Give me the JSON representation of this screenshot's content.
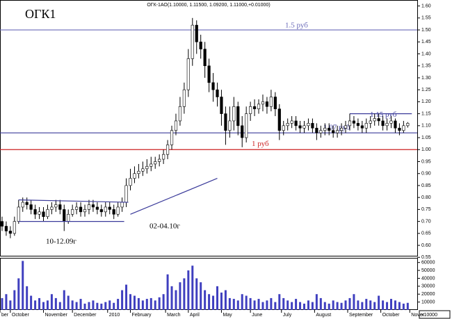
{
  "chart_data": {
    "type": "candlestick",
    "title": "ОГК1",
    "header": "ОГК-1АО(1.10000, 1.11500, 1.09200, 1.11000,+0.01000)",
    "annotations": [
      "10-12.09г",
      "02-04.10г"
    ],
    "xlim": [
      -0.5,
      100.3
    ],
    "xticks": [
      {
        "value": -0.5,
        "label": "ber"
      },
      {
        "value": 2,
        "label": "October"
      },
      {
        "value": 10,
        "label": "November"
      },
      {
        "value": 17,
        "label": "December"
      },
      {
        "value": 25.5,
        "label": "2010"
      },
      {
        "value": 31,
        "label": "February"
      },
      {
        "value": 39.5,
        "label": "March"
      },
      {
        "value": 45,
        "label": "April"
      },
      {
        "value": 53,
        "label": "May"
      },
      {
        "value": 60,
        "label": "June"
      },
      {
        "value": 67.5,
        "label": "July"
      },
      {
        "value": 75.5,
        "label": "August"
      },
      {
        "value": 83.5,
        "label": "September"
      },
      {
        "value": 91.5,
        "label": "October"
      },
      {
        "value": 98.5,
        "label": "Nover"
      }
    ],
    "ylim": [
      0.545,
      1.625
    ],
    "yticks": [
      {
        "value": 0.55,
        "label": "0.55"
      },
      {
        "value": 0.6,
        "label": "0.60"
      },
      {
        "value": 0.65,
        "label": "0.65"
      },
      {
        "value": 0.7,
        "label": "0.70"
      },
      {
        "value": 0.75,
        "label": "0.75"
      },
      {
        "value": 0.8,
        "label": "0.80"
      },
      {
        "value": 0.85,
        "label": "0.85"
      },
      {
        "value": 0.9,
        "label": "0.90"
      },
      {
        "value": 0.95,
        "label": "0.95"
      },
      {
        "value": 1.0,
        "label": "1.00"
      },
      {
        "value": 1.05,
        "label": "1.05"
      },
      {
        "value": 1.1,
        "label": "1.10"
      },
      {
        "value": 1.15,
        "label": "1.15"
      },
      {
        "value": 1.2,
        "label": "1.20"
      },
      {
        "value": 1.25,
        "label": "1.25"
      },
      {
        "value": 1.3,
        "label": "1.30"
      },
      {
        "value": 1.35,
        "label": "1.35"
      },
      {
        "value": 1.4,
        "label": "1.40"
      },
      {
        "value": 1.45,
        "label": "1.45"
      },
      {
        "value": 1.5,
        "label": "1.50"
      },
      {
        "value": 1.55,
        "label": "1.55"
      },
      {
        "value": 1.6,
        "label": "1.60"
      }
    ],
    "up_color": "#ffffff",
    "down_color": "#000000",
    "candles": [
      [
        0.7,
        0.72,
        0.66,
        0.68
      ],
      [
        0.68,
        0.7,
        0.64,
        0.66
      ],
      [
        0.66,
        0.68,
        0.63,
        0.65
      ],
      [
        0.65,
        0.72,
        0.64,
        0.7
      ],
      [
        0.7,
        0.79,
        0.69,
        0.76
      ],
      [
        0.76,
        0.8,
        0.74,
        0.78
      ],
      [
        0.78,
        0.8,
        0.75,
        0.77
      ],
      [
        0.77,
        0.79,
        0.73,
        0.75
      ],
      [
        0.75,
        0.77,
        0.71,
        0.73
      ],
      [
        0.73,
        0.76,
        0.71,
        0.74
      ],
      [
        0.74,
        0.76,
        0.7,
        0.72
      ],
      [
        0.72,
        0.77,
        0.71,
        0.75
      ],
      [
        0.75,
        0.78,
        0.73,
        0.76
      ],
      [
        0.76,
        0.79,
        0.74,
        0.77
      ],
      [
        0.77,
        0.79,
        0.73,
        0.75
      ],
      [
        0.75,
        0.77,
        0.66,
        0.7
      ],
      [
        0.7,
        0.75,
        0.69,
        0.73
      ],
      [
        0.73,
        0.77,
        0.72,
        0.75
      ],
      [
        0.75,
        0.78,
        0.73,
        0.76
      ],
      [
        0.76,
        0.78,
        0.72,
        0.74
      ],
      [
        0.74,
        0.77,
        0.72,
        0.75
      ],
      [
        0.75,
        0.79,
        0.73,
        0.77
      ],
      [
        0.77,
        0.79,
        0.74,
        0.76
      ],
      [
        0.76,
        0.78,
        0.73,
        0.75
      ],
      [
        0.75,
        0.77,
        0.72,
        0.74
      ],
      [
        0.74,
        0.78,
        0.72,
        0.76
      ],
      [
        0.76,
        0.78,
        0.73,
        0.75
      ],
      [
        0.75,
        0.77,
        0.71,
        0.73
      ],
      [
        0.73,
        0.78,
        0.72,
        0.76
      ],
      [
        0.76,
        0.8,
        0.74,
        0.78
      ],
      [
        0.78,
        0.88,
        0.76,
        0.85
      ],
      [
        0.85,
        0.92,
        0.83,
        0.88
      ],
      [
        0.88,
        0.93,
        0.86,
        0.9
      ],
      [
        0.9,
        0.94,
        0.88,
        0.91
      ],
      [
        0.91,
        0.95,
        0.89,
        0.92
      ],
      [
        0.92,
        0.96,
        0.9,
        0.93
      ],
      [
        0.93,
        0.97,
        0.91,
        0.94
      ],
      [
        0.94,
        0.97,
        0.92,
        0.95
      ],
      [
        0.95,
        0.98,
        0.93,
        0.96
      ],
      [
        0.96,
        1.0,
        0.94,
        0.98
      ],
      [
        0.98,
        1.04,
        0.96,
        1.02
      ],
      [
        1.02,
        1.1,
        1.0,
        1.08
      ],
      [
        1.08,
        1.15,
        1.06,
        1.12
      ],
      [
        1.12,
        1.22,
        1.1,
        1.18
      ],
      [
        1.18,
        1.28,
        1.15,
        1.25
      ],
      [
        1.25,
        1.42,
        1.22,
        1.38
      ],
      [
        1.38,
        1.55,
        1.35,
        1.52
      ],
      [
        1.52,
        1.54,
        1.4,
        1.45
      ],
      [
        1.45,
        1.48,
        1.38,
        1.42
      ],
      [
        1.42,
        1.45,
        1.3,
        1.35
      ],
      [
        1.35,
        1.38,
        1.24,
        1.28
      ],
      [
        1.28,
        1.32,
        1.2,
        1.25
      ],
      [
        1.25,
        1.28,
        1.18,
        1.22
      ],
      [
        1.22,
        1.25,
        1.1,
        1.15
      ],
      [
        1.15,
        1.18,
        1.02,
        1.08
      ],
      [
        1.08,
        1.18,
        1.05,
        1.12
      ],
      [
        1.12,
        1.22,
        1.08,
        1.18
      ],
      [
        1.18,
        1.2,
        1.06,
        1.1
      ],
      [
        1.1,
        1.14,
        1.01,
        1.05
      ],
      [
        1.05,
        1.18,
        1.03,
        1.15
      ],
      [
        1.15,
        1.2,
        1.12,
        1.18
      ],
      [
        1.18,
        1.21,
        1.14,
        1.17
      ],
      [
        1.17,
        1.21,
        1.15,
        1.19
      ],
      [
        1.19,
        1.23,
        1.16,
        1.2
      ],
      [
        1.2,
        1.22,
        1.15,
        1.18
      ],
      [
        1.18,
        1.25,
        1.16,
        1.22
      ],
      [
        1.22,
        1.24,
        1.14,
        1.17
      ],
      [
        1.17,
        1.19,
        1.04,
        1.08
      ],
      [
        1.08,
        1.12,
        1.06,
        1.1
      ],
      [
        1.1,
        1.13,
        1.08,
        1.11
      ],
      [
        1.11,
        1.14,
        1.09,
        1.12
      ],
      [
        1.12,
        1.14,
        1.08,
        1.1
      ],
      [
        1.1,
        1.12,
        1.07,
        1.09
      ],
      [
        1.09,
        1.12,
        1.07,
        1.1
      ],
      [
        1.1,
        1.13,
        1.08,
        1.11
      ],
      [
        1.11,
        1.13,
        1.07,
        1.09
      ],
      [
        1.09,
        1.11,
        1.04,
        1.07
      ],
      [
        1.07,
        1.1,
        1.05,
        1.08
      ],
      [
        1.08,
        1.11,
        1.06,
        1.09
      ],
      [
        1.09,
        1.11,
        1.06,
        1.08
      ],
      [
        1.08,
        1.1,
        1.05,
        1.07
      ],
      [
        1.07,
        1.1,
        1.05,
        1.08
      ],
      [
        1.08,
        1.11,
        1.06,
        1.09
      ],
      [
        1.09,
        1.12,
        1.07,
        1.1
      ],
      [
        1.1,
        1.15,
        1.08,
        1.12
      ],
      [
        1.12,
        1.14,
        1.09,
        1.11
      ],
      [
        1.11,
        1.13,
        1.08,
        1.1
      ],
      [
        1.1,
        1.12,
        1.07,
        1.09
      ],
      [
        1.09,
        1.13,
        1.07,
        1.11
      ],
      [
        1.11,
        1.14,
        1.09,
        1.12
      ],
      [
        1.12,
        1.15,
        1.1,
        1.13
      ],
      [
        1.13,
        1.15,
        1.1,
        1.12
      ],
      [
        1.12,
        1.14,
        1.08,
        1.1
      ],
      [
        1.1,
        1.13,
        1.08,
        1.11
      ],
      [
        1.11,
        1.14,
        1.09,
        1.12
      ],
      [
        1.12,
        1.13,
        1.07,
        1.09
      ],
      [
        1.09,
        1.11,
        1.06,
        1.08
      ],
      [
        1.08,
        1.12,
        1.07,
        1.1
      ],
      [
        1.1,
        1.115,
        1.092,
        1.11
      ]
    ],
    "volume_color": "#3f3fbf",
    "volumes": [
      15000,
      20000,
      12000,
      25000,
      40000,
      62000,
      30000,
      18000,
      12000,
      15000,
      10000,
      12000,
      20000,
      15000,
      10000,
      25000,
      18000,
      12000,
      10000,
      14000,
      8000,
      10000,
      12000,
      9000,
      8000,
      10000,
      12000,
      9000,
      14000,
      25000,
      32000,
      20000,
      18000,
      15000,
      12000,
      14000,
      15000,
      12000,
      16000,
      20000,
      45000,
      30000,
      25000,
      35000,
      40000,
      50000,
      56000,
      40000,
      35000,
      25000,
      20000,
      18000,
      30000,
      22000,
      25000,
      15000,
      14000,
      12000,
      20000,
      18000,
      15000,
      12000,
      14000,
      10000,
      12000,
      15000,
      10000,
      20000,
      15000,
      12000,
      10000,
      14000,
      10000,
      8000,
      12000,
      10000,
      20000,
      15000,
      10000,
      8000,
      12000,
      10000,
      9000,
      12000,
      15000,
      20000,
      12000,
      10000,
      14000,
      12000,
      10000,
      18000,
      12000,
      10000,
      14000,
      12000,
      10000,
      8000,
      9000
    ],
    "volume_ylim": [
      0,
      65000
    ],
    "volume_yticks": [
      10000,
      20000,
      30000,
      40000,
      50000,
      60000
    ],
    "volume_unit_label": "x10000",
    "levels": [
      {
        "value": 1.5,
        "label": "1.5 руб",
        "color": "#6a6ab8"
      },
      {
        "value": 1.0,
        "label": "1 руб",
        "color": "#cc2222"
      },
      {
        "value": 1.07,
        "label": "1.07 руб",
        "color": "#3a3a9a"
      },
      {
        "value": 1.15,
        "label": "1.15 руб",
        "color": "#3a3a9a",
        "x": [
          84,
          99
        ]
      }
    ],
    "trendlines": [
      {
        "x": [
          4,
          30.5
        ],
        "y": [
          0.79,
          0.78
        ],
        "color": "#3a3a9a"
      },
      {
        "x": [
          4,
          29.5
        ],
        "y": [
          0.7,
          0.7
        ],
        "color": "#3a3a9a"
      },
      {
        "x": [
          31,
          52
        ],
        "y": [
          0.73,
          0.88
        ],
        "color": "#3a3a9a"
      }
    ]
  }
}
